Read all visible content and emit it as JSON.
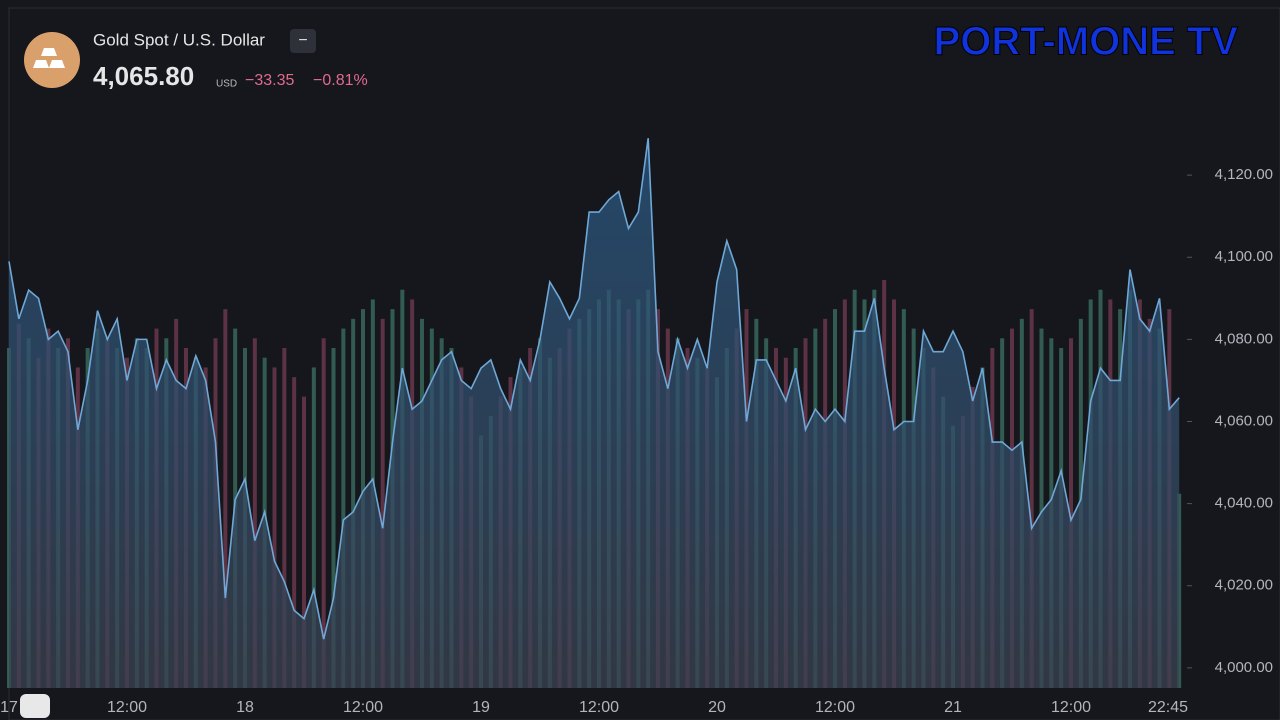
{
  "header": {
    "symbol": "Gold Spot / U.S. Dollar",
    "button": "−",
    "price": "4,065.80",
    "currency": "USD",
    "change": "−33.35",
    "change_pct": "−0.81%",
    "watermark": "PORT-MONE TV"
  },
  "chart_data": {
    "type": "area",
    "categories": [
      "17",
      null,
      null,
      null,
      null,
      null,
      null,
      null,
      null,
      null,
      null,
      null,
      "12:00",
      null,
      null,
      null,
      null,
      null,
      null,
      null,
      null,
      null,
      null,
      null,
      "18",
      null,
      null,
      null,
      null,
      null,
      null,
      null,
      null,
      null,
      null,
      null,
      "12:00",
      null,
      null,
      null,
      null,
      null,
      null,
      null,
      null,
      null,
      null,
      null,
      "19",
      null,
      null,
      null,
      null,
      null,
      null,
      null,
      null,
      null,
      null,
      null,
      "12:00",
      null,
      null,
      null,
      null,
      null,
      null,
      null,
      null,
      null,
      null,
      null,
      "20",
      null,
      null,
      null,
      null,
      null,
      null,
      null,
      null,
      null,
      null,
      null,
      "12:00",
      null,
      null,
      null,
      null,
      null,
      null,
      null,
      null,
      null,
      null,
      null,
      "21",
      null,
      null,
      null,
      null,
      null,
      null,
      null,
      null,
      null,
      null,
      null,
      "12:00",
      null,
      null,
      null,
      null,
      null,
      null,
      null,
      null,
      null,
      null,
      "22:45"
    ],
    "series": [
      {
        "name": "Gold Spot / U.S. Dollar",
        "color": "#6fa8d6",
        "values": [
          4099,
          4085,
          4092,
          4090,
          4080,
          4082,
          4077,
          4058,
          4070,
          4087,
          4080,
          4085,
          4070,
          4080,
          4080,
          4068,
          4075,
          4070,
          4068,
          4076,
          4070,
          4055,
          4017,
          4041,
          4046,
          4031,
          4038,
          4026,
          4021,
          4014,
          4012,
          4019,
          4007,
          4017,
          4036,
          4038,
          4043,
          4046,
          4034,
          4055,
          4073,
          4063,
          4065,
          4070,
          4075,
          4077,
          4070,
          4068,
          4073,
          4075,
          4068,
          4063,
          4075,
          4070,
          4080,
          4094,
          4090,
          4085,
          4090,
          4111,
          4111,
          4114,
          4116,
          4107,
          4111,
          4129,
          4077,
          4068,
          4080,
          4073,
          4080,
          4073,
          4094,
          4104,
          4097,
          4060,
          4075,
          4075,
          4070,
          4065,
          4073,
          4058,
          4063,
          4060,
          4063,
          4060,
          4082,
          4082,
          4090,
          4073,
          4058,
          4060,
          4060,
          4082,
          4077,
          4077,
          4082,
          4077,
          4065,
          4073,
          4055,
          4055,
          4053,
          4055,
          4034,
          4038,
          4041,
          4048,
          4036,
          4041,
          4065,
          4073,
          4070,
          4070,
          4097,
          4085,
          4082,
          4090,
          4063,
          4065.8
        ]
      },
      {
        "name": "Volume",
        "color": "#3f7a6a",
        "axis": "y2",
        "values": [
          70,
          75,
          72,
          68,
          74,
          70,
          72,
          66,
          70,
          74,
          72,
          70,
          68,
          72,
          70,
          74,
          72,
          76,
          70,
          68,
          66,
          72,
          78,
          74,
          70,
          72,
          68,
          66,
          70,
          64,
          60,
          66,
          72,
          70,
          74,
          76,
          78,
          80,
          76,
          78,
          82,
          80,
          76,
          74,
          72,
          70,
          66,
          60,
          52,
          56,
          60,
          64,
          66,
          70,
          72,
          68,
          70,
          74,
          76,
          78,
          80,
          82,
          80,
          78,
          80,
          82,
          78,
          74,
          72,
          70,
          68,
          66,
          64,
          70,
          74,
          78,
          76,
          72,
          70,
          68,
          70,
          72,
          74,
          76,
          78,
          80,
          82,
          80,
          82,
          84,
          80,
          78,
          74,
          70,
          66,
          60,
          54,
          56,
          62,
          66,
          70,
          72,
          74,
          76,
          78,
          74,
          72,
          70,
          72,
          76,
          80,
          82,
          80,
          78,
          82,
          80,
          76,
          74,
          78,
          40
        ]
      }
    ],
    "ylim": [
      3995.1,
      4160.7
    ],
    "y2lim": [
      0,
      140
    ],
    "yticks": [
      {
        "value": 4000,
        "label": "4,000.00"
      },
      {
        "value": 4020,
        "label": "4,020.00"
      },
      {
        "value": 4040,
        "label": "4,040.00"
      },
      {
        "value": 4060,
        "label": "4,060.00"
      },
      {
        "value": 4080,
        "label": "4,080.00"
      },
      {
        "value": 4100,
        "label": "4,100.00"
      },
      {
        "value": 4120,
        "label": "4,120.00"
      }
    ]
  }
}
